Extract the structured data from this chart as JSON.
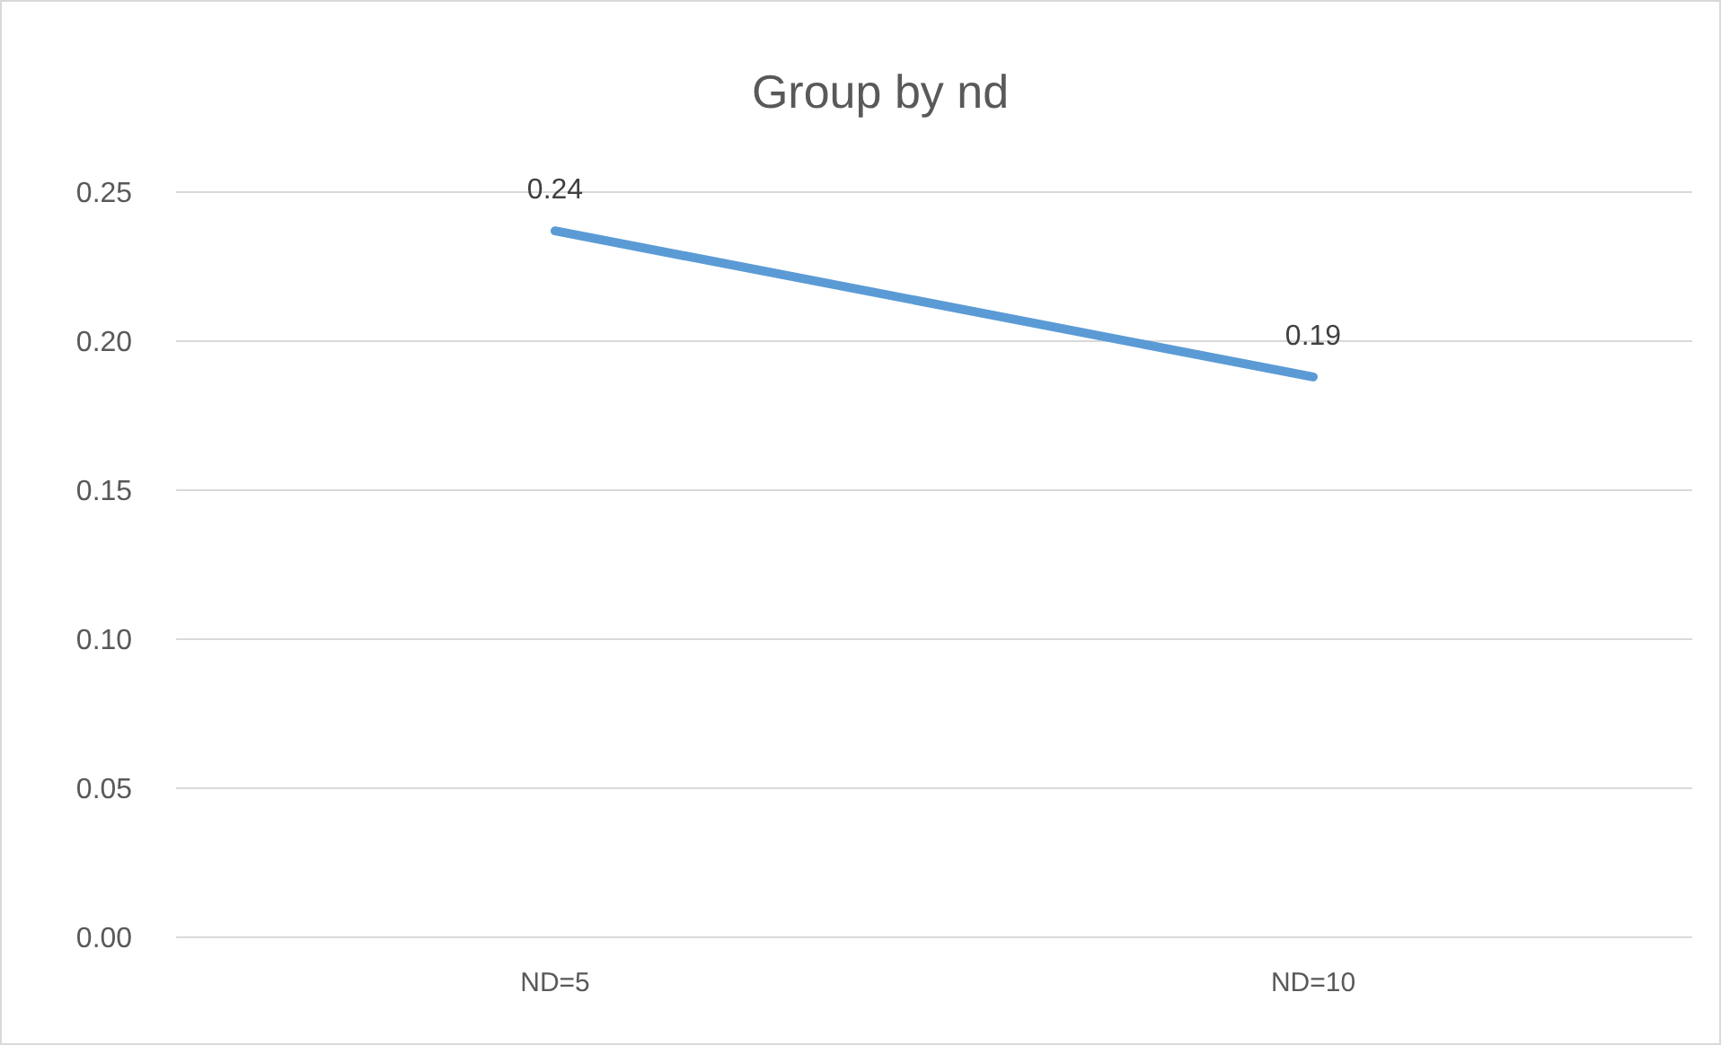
{
  "chart_data": {
    "type": "line",
    "title": "Group by nd",
    "categories": [
      "ND=5",
      "ND=10"
    ],
    "series": [
      {
        "color": "#5b9bd5",
        "values": [
          0.237,
          0.188
        ],
        "value_labels": [
          "0.24",
          "0.19"
        ]
      }
    ],
    "ylim": [
      0,
      0.25
    ],
    "yticks": [
      {
        "value": 0,
        "label": "0.00"
      },
      {
        "value": 0.05,
        "label": "0.05"
      },
      {
        "value": 0.1,
        "label": "0.10"
      },
      {
        "value": 0.15,
        "label": "0.15"
      },
      {
        "value": 0.2,
        "label": "0.20"
      },
      {
        "value": 0.25,
        "label": "0.25"
      }
    ],
    "grid": "y",
    "marker": "none",
    "line_style": "solid"
  }
}
